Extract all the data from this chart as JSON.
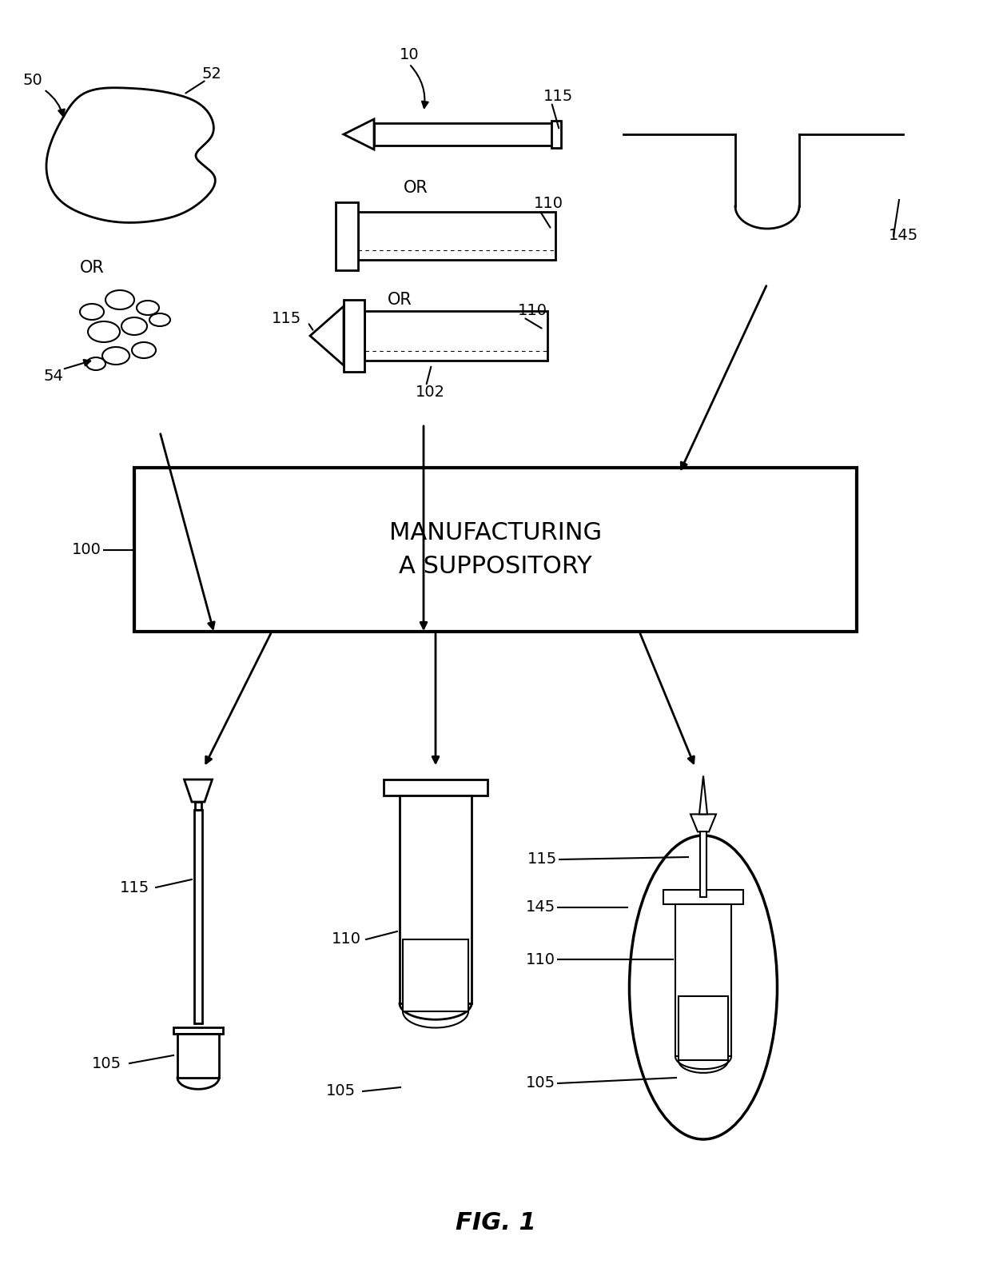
{
  "title": "FIG. 1",
  "bg_color": "#ffffff",
  "line_color": "#000000",
  "box_text": "MANUFACTURING\nA SUPPOSITORY"
}
